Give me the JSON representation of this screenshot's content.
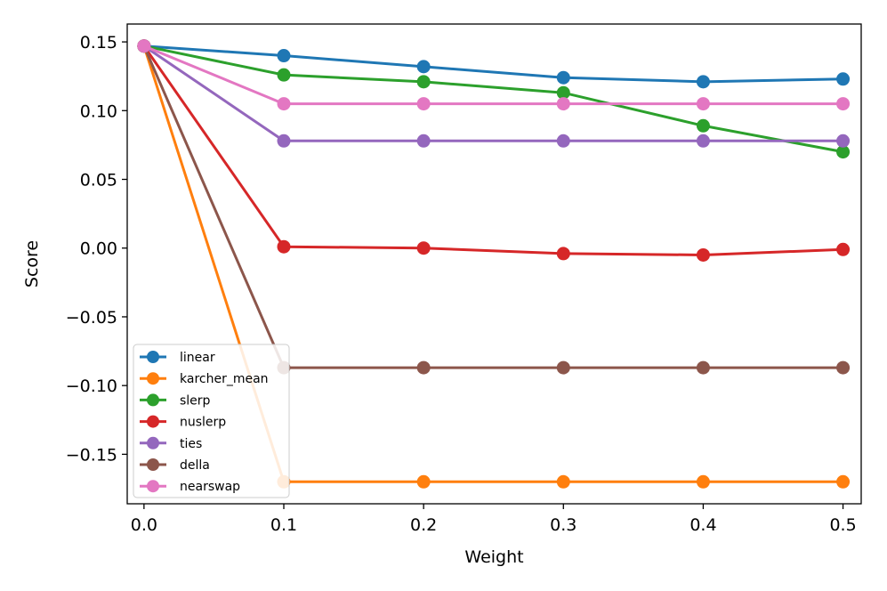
{
  "chart_data": {
    "type": "line",
    "title": "",
    "xlabel": "Weight",
    "ylabel": "Score",
    "xlim": [
      -0.012,
      0.513
    ],
    "ylim": [
      -0.186,
      0.163
    ],
    "xticks": [
      0.0,
      0.1,
      0.2,
      0.3,
      0.4,
      0.5
    ],
    "xtick_labels": [
      "0.0",
      "0.1",
      "0.2",
      "0.3",
      "0.4",
      "0.5"
    ],
    "yticks": [
      0.15,
      0.1,
      0.05,
      0.0,
      -0.05,
      -0.1,
      -0.15
    ],
    "ytick_labels": [
      "0.15",
      "0.10",
      "0.05",
      "0.00",
      "−0.05",
      "−0.10",
      "−0.15"
    ],
    "grid": false,
    "legend_position": "lower-left",
    "x": [
      0.0,
      0.1,
      0.2,
      0.3,
      0.4,
      0.5
    ],
    "series": [
      {
        "name": "linear",
        "color": "#1f77b4",
        "values": [
          0.147,
          0.14,
          0.132,
          0.124,
          0.121,
          0.123
        ]
      },
      {
        "name": "karcher_mean",
        "color": "#ff7f0e",
        "values": [
          0.147,
          -0.17,
          -0.17,
          -0.17,
          -0.17,
          -0.17
        ]
      },
      {
        "name": "slerp",
        "color": "#2ca02c",
        "values": [
          0.147,
          0.126,
          0.121,
          0.113,
          0.089,
          0.07
        ]
      },
      {
        "name": "nuslerp",
        "color": "#d62728",
        "values": [
          0.147,
          0.001,
          0.0,
          -0.004,
          -0.005,
          -0.001
        ]
      },
      {
        "name": "ties",
        "color": "#9467bd",
        "values": [
          0.147,
          0.078,
          0.078,
          0.078,
          0.078,
          0.078
        ]
      },
      {
        "name": "della",
        "color": "#8c564b",
        "values": [
          0.147,
          -0.087,
          -0.087,
          -0.087,
          -0.087,
          -0.087
        ]
      },
      {
        "name": "nearswap",
        "color": "#e377c2",
        "values": [
          0.147,
          0.105,
          0.105,
          0.105,
          0.105,
          0.105
        ]
      }
    ]
  }
}
